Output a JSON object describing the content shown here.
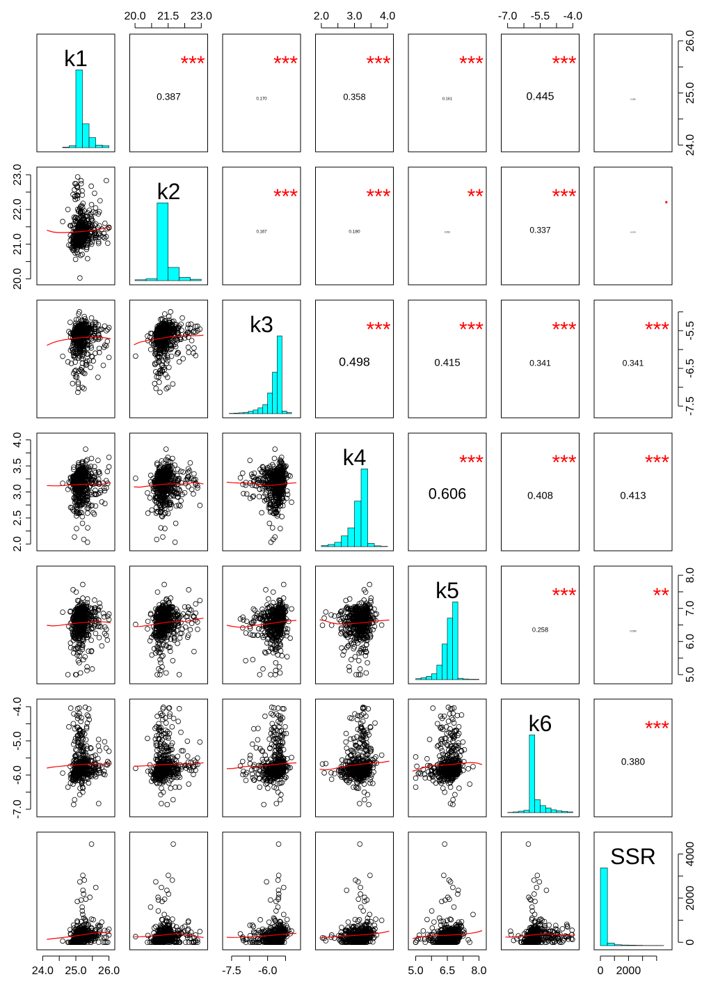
{
  "chart_data": {
    "type": "scatter_matrix",
    "variables": [
      "k1",
      "k2",
      "k3",
      "k4",
      "k5",
      "k6",
      "SSR"
    ],
    "diagonal": "histogram",
    "lower_panels": "scatter with red loess smoother",
    "upper_panels": "correlation coefficient with significance stars",
    "colors": {
      "histogram": "#00FFFF",
      "smoother": "#FF0000",
      "stars": "#FF0000",
      "points": "#000000"
    },
    "axis_ranges": {
      "k1": [
        23.95,
        26.05
      ],
      "k2": [
        19.95,
        23.1
      ],
      "k3": [
        -7.7,
        -4.8
      ],
      "k4": [
        1.95,
        4.05
      ],
      "k5": [
        4.85,
        8.15
      ],
      "k6": [
        -7.1,
        -3.9
      ],
      "SSR": [
        -150,
        4800
      ]
    },
    "ticks": {
      "k1": [
        "24.0",
        "25.0",
        "26.0"
      ],
      "k2": [
        "20.0",
        "21.5",
        "23.0"
      ],
      "k3": [
        "-7.5",
        "-6.0"
      ],
      "k4": [
        "2.0",
        "3.0",
        "4.0"
      ],
      "k5": [
        "5.0",
        "6.5",
        "8.0"
      ],
      "k6": [
        "-7.0",
        "-5.5",
        "-4.0"
      ],
      "SSR": [
        "0",
        "2000"
      ]
    },
    "right_ticks": {
      "k1": [
        "24.0",
        "25.0",
        "26.0"
      ],
      "k3": [
        "-7.5",
        "-6.5",
        "-5.5"
      ],
      "k5": [
        "5.0",
        "6.0",
        "7.0",
        "8.0"
      ],
      "SSR": [
        "0",
        "2000",
        "4000"
      ]
    },
    "left_ticks": {
      "k2": [
        "20.0",
        "21.0",
        "22.0",
        "23.0"
      ],
      "k4": [
        "2.0",
        "2.5",
        "3.0",
        "3.5",
        "4.0"
      ],
      "k6": [
        "-7.0",
        "-6.0",
        "-5.0",
        "-4.0"
      ]
    },
    "histograms": {
      "k1": {
        "edges": [
          24.0,
          24.2,
          24.4,
          24.6,
          24.8,
          25.0,
          25.2,
          25.4,
          25.6,
          25.8,
          26.0
        ],
        "counts": [
          0,
          0,
          0,
          2,
          8,
          310,
          95,
          40,
          10,
          8
        ]
      },
      "k2": {
        "edges": [
          20.0,
          20.5,
          21.0,
          21.5,
          22.0,
          22.5,
          23.0
        ],
        "counts": [
          5,
          12,
          470,
          80,
          20,
          8
        ]
      },
      "k3": {
        "edges": [
          -7.6,
          -7.4,
          -7.2,
          -7.0,
          -6.8,
          -6.6,
          -6.4,
          -6.2,
          -6.0,
          -5.8,
          -5.6,
          -5.4,
          -5.2,
          -5.0
        ],
        "counts": [
          1,
          2,
          3,
          5,
          9,
          14,
          22,
          35,
          80,
          160,
          300,
          10,
          4
        ]
      },
      "k4": {
        "edges": [
          2.0,
          2.2,
          2.4,
          2.6,
          2.8,
          3.0,
          3.2,
          3.4,
          3.6,
          3.8,
          4.0
        ],
        "counts": [
          4,
          8,
          16,
          40,
          70,
          170,
          290,
          12,
          3,
          1
        ]
      },
      "k5": {
        "edges": [
          5.0,
          5.25,
          5.5,
          5.75,
          6.0,
          6.25,
          6.5,
          6.75,
          7.0,
          7.25,
          7.5,
          7.75,
          8.0
        ],
        "counts": [
          3,
          6,
          10,
          18,
          45,
          110,
          190,
          240,
          4,
          2,
          1,
          1
        ]
      },
      "k6": {
        "edges": [
          -7.0,
          -6.75,
          -6.5,
          -6.25,
          -6.0,
          -5.75,
          -5.5,
          -5.25,
          -5.0,
          -4.75,
          -4.5,
          -4.25,
          -4.0
        ],
        "counts": [
          1,
          3,
          6,
          10,
          330,
          55,
          30,
          20,
          12,
          8,
          5,
          3
        ]
      },
      "SSR": {
        "edges": [
          0,
          500,
          1000,
          1500,
          2000,
          2500,
          3000,
          3500,
          4000,
          4500
        ],
        "counts": [
          540,
          18,
          6,
          4,
          3,
          2,
          1,
          1,
          1
        ]
      }
    },
    "correlations": [
      {
        "row": "k1",
        "col": "k2",
        "r": "0.387",
        "stars": "***"
      },
      {
        "row": "k1",
        "col": "k3",
        "r": "0.170",
        "stars": "***"
      },
      {
        "row": "k1",
        "col": "k4",
        "r": "0.358",
        "stars": "***"
      },
      {
        "row": "k1",
        "col": "k5",
        "r": "0.161",
        "stars": "***"
      },
      {
        "row": "k1",
        "col": "k6",
        "r": "0.445",
        "stars": "***"
      },
      {
        "row": "k1",
        "col": "SSR",
        "r": "0.056",
        "stars": ""
      },
      {
        "row": "k2",
        "col": "k3",
        "r": "0.167",
        "stars": "***"
      },
      {
        "row": "k2",
        "col": "k4",
        "r": "0.180",
        "stars": "***"
      },
      {
        "row": "k2",
        "col": "k5",
        "r": "0.091",
        "stars": "**"
      },
      {
        "row": "k2",
        "col": "k6",
        "r": "0.337",
        "stars": "***"
      },
      {
        "row": "k2",
        "col": "SSR",
        "r": "0.074",
        "stars": "."
      },
      {
        "row": "k3",
        "col": "k4",
        "r": "0.498",
        "stars": "***"
      },
      {
        "row": "k3",
        "col": "k5",
        "r": "0.415",
        "stars": "***"
      },
      {
        "row": "k3",
        "col": "k6",
        "r": "0.341",
        "stars": "***"
      },
      {
        "row": "k3",
        "col": "SSR",
        "r": "0.341",
        "stars": "***"
      },
      {
        "row": "k4",
        "col": "k5",
        "r": "0.606",
        "stars": "***"
      },
      {
        "row": "k4",
        "col": "k6",
        "r": "0.408",
        "stars": "***"
      },
      {
        "row": "k4",
        "col": "SSR",
        "r": "0.413",
        "stars": "***"
      },
      {
        "row": "k5",
        "col": "k6",
        "r": "0.258",
        "stars": "***"
      },
      {
        "row": "k5",
        "col": "SSR",
        "r": "0.099",
        "stars": "**"
      },
      {
        "row": "k6",
        "col": "SSR",
        "r": "0.380",
        "stars": "***"
      }
    ],
    "n_points": 500
  }
}
